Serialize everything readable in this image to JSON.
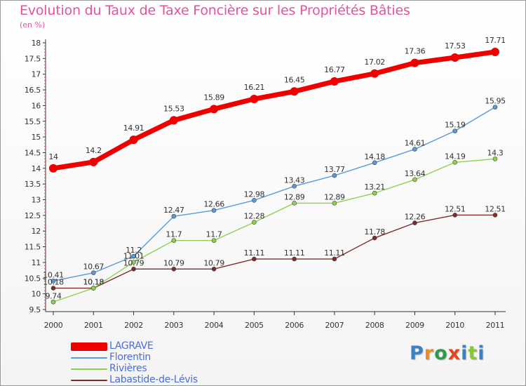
{
  "title": "Evolution du Taux de Taxe Foncière sur les Propriétés Bâties",
  "subtitle": "(en %)",
  "logo": {
    "text": "Proxiti",
    "letters": [
      "P",
      "r",
      "o",
      "x",
      "i",
      "t",
      "i"
    ],
    "colors": [
      "#3a82c4",
      "#ef8a1e",
      "#2f9a4a",
      "#e0461e",
      "#3a82c4",
      "#8cc43a",
      "#3a82c4"
    ]
  },
  "chart_data": {
    "type": "line",
    "title": "Evolution du Taux de Taxe Foncière sur les Propriétés Bâties",
    "ylabel": "(en %)",
    "xlabel": "",
    "categories": [
      "2000",
      "2001",
      "2002",
      "2003",
      "2004",
      "2005",
      "2006",
      "2007",
      "2008",
      "2009",
      "2010",
      "2011"
    ],
    "yticks": [
      "9.5",
      "10",
      "10.5",
      "11",
      "11.5",
      "12",
      "12.5",
      "13",
      "13.5",
      "14",
      "14.5",
      "15",
      "15.5",
      "16",
      "16.5",
      "17",
      "17.5",
      "18"
    ],
    "ylim": [
      9.5,
      18
    ],
    "grid": false,
    "legend": "bottom-left",
    "series": [
      {
        "name": "LAGRAVE",
        "color": "#ee0000",
        "values": [
          14,
          14.2,
          14.91,
          15.53,
          15.89,
          16.21,
          16.45,
          16.77,
          17.02,
          17.36,
          17.53,
          17.71
        ],
        "labels": [
          "14",
          "14.2",
          "14.91",
          "15.53",
          "15.89",
          "16.21",
          "16.45",
          "16.77",
          "17.02",
          "17.36",
          "17.53",
          "17.71"
        ]
      },
      {
        "name": "Florentin",
        "color": "#5b9bd5",
        "values": [
          10.41,
          10.67,
          11.2,
          12.47,
          12.66,
          12.98,
          13.43,
          13.77,
          14.18,
          14.61,
          15.19,
          15.95
        ],
        "labels": [
          "10.41",
          "10.67",
          "11.2",
          "12.47",
          "12.66",
          "12.98",
          "13.43",
          "13.77",
          "14.18",
          "14.61",
          "15.19",
          "15.95"
        ]
      },
      {
        "name": "Rivières",
        "color": "#8fd14f",
        "values": [
          9.74,
          10.18,
          11.01,
          11.7,
          11.7,
          12.28,
          12.89,
          12.89,
          13.21,
          13.64,
          14.19,
          14.3
        ],
        "labels": [
          "9.74",
          "10.18",
          "11.01",
          "11.7",
          "11.7",
          "12.28",
          "12.89",
          "12.89",
          "13.21",
          "13.64",
          "14.19",
          "14.3"
        ]
      },
      {
        "name": "Labastide-de-Lévis",
        "color": "#7b2d2d",
        "values": [
          10.18,
          10.18,
          10.79,
          10.79,
          10.79,
          11.11,
          11.11,
          11.11,
          11.78,
          12.26,
          12.51,
          12.51
        ],
        "labels": [
          "10.18",
          "10.18",
          "10.79",
          "10.79",
          "10.79",
          "11.11",
          "11.11",
          "11.11",
          "11.78",
          "12.26",
          "12.51",
          "12.51"
        ]
      }
    ]
  }
}
